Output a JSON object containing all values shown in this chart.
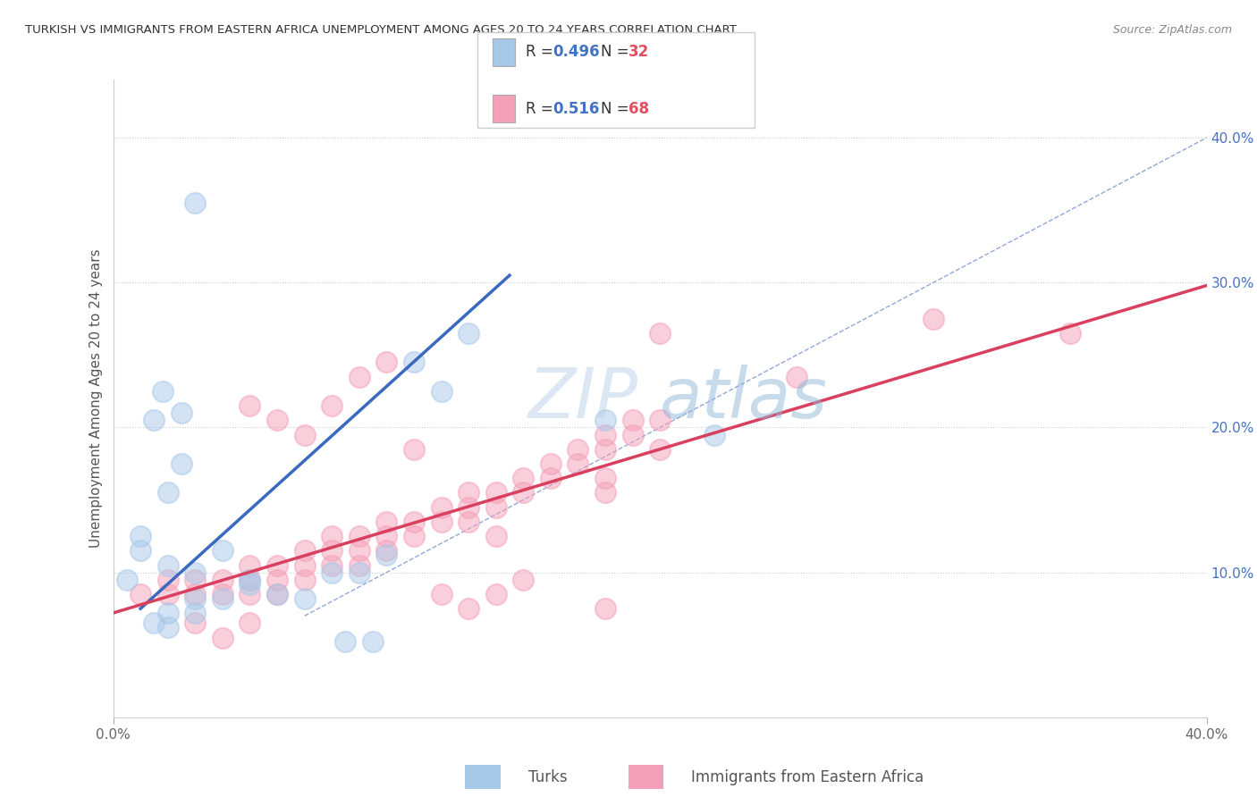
{
  "title": "TURKISH VS IMMIGRANTS FROM EASTERN AFRICA UNEMPLOYMENT AMONG AGES 20 TO 24 YEARS CORRELATION CHART",
  "source": "Source: ZipAtlas.com",
  "ylabel": "Unemployment Among Ages 20 to 24 years",
  "xlim": [
    0.0,
    0.4
  ],
  "ylim": [
    0.0,
    0.44
  ],
  "watermark_zip": "ZIP",
  "watermark_atlas": "atlas",
  "turks_color": "#a8c8e8",
  "east_africa_color": "#f4a0b8",
  "turks_line_color": "#3a6abf",
  "east_africa_line_color": "#d94060",
  "diag_line_color": "#90a8d8",
  "legend_r1": "R = ",
  "legend_v1": "0.496",
  "legend_n1": "  N = ",
  "legend_nv1": "32",
  "legend_r2": "R = ",
  "legend_v2": "0.516",
  "legend_n2": "  N = ",
  "legend_nv2": "68",
  "turks_scatter": [
    [
      0.015,
      0.205
    ],
    [
      0.018,
      0.225
    ],
    [
      0.025,
      0.21
    ],
    [
      0.01,
      0.125
    ],
    [
      0.02,
      0.155
    ],
    [
      0.025,
      0.175
    ],
    [
      0.01,
      0.115
    ],
    [
      0.02,
      0.105
    ],
    [
      0.03,
      0.1
    ],
    [
      0.04,
      0.115
    ],
    [
      0.05,
      0.095
    ],
    [
      0.06,
      0.085
    ],
    [
      0.04,
      0.082
    ],
    [
      0.03,
      0.082
    ],
    [
      0.02,
      0.072
    ],
    [
      0.02,
      0.062
    ],
    [
      0.03,
      0.072
    ],
    [
      0.05,
      0.092
    ],
    [
      0.07,
      0.082
    ],
    [
      0.08,
      0.1
    ],
    [
      0.09,
      0.1
    ],
    [
      0.1,
      0.112
    ],
    [
      0.11,
      0.245
    ],
    [
      0.12,
      0.225
    ],
    [
      0.13,
      0.265
    ],
    [
      0.18,
      0.205
    ],
    [
      0.085,
      0.052
    ],
    [
      0.095,
      0.052
    ],
    [
      0.03,
      0.355
    ],
    [
      0.22,
      0.195
    ],
    [
      0.015,
      0.065
    ],
    [
      0.005,
      0.095
    ]
  ],
  "east_africa_scatter": [
    [
      0.01,
      0.085
    ],
    [
      0.02,
      0.095
    ],
    [
      0.02,
      0.085
    ],
    [
      0.03,
      0.095
    ],
    [
      0.03,
      0.085
    ],
    [
      0.04,
      0.095
    ],
    [
      0.04,
      0.085
    ],
    [
      0.05,
      0.095
    ],
    [
      0.05,
      0.085
    ],
    [
      0.05,
      0.105
    ],
    [
      0.06,
      0.095
    ],
    [
      0.06,
      0.105
    ],
    [
      0.06,
      0.085
    ],
    [
      0.07,
      0.105
    ],
    [
      0.07,
      0.115
    ],
    [
      0.07,
      0.095
    ],
    [
      0.08,
      0.115
    ],
    [
      0.08,
      0.105
    ],
    [
      0.08,
      0.125
    ],
    [
      0.09,
      0.115
    ],
    [
      0.09,
      0.125
    ],
    [
      0.09,
      0.105
    ],
    [
      0.1,
      0.135
    ],
    [
      0.1,
      0.125
    ],
    [
      0.1,
      0.115
    ],
    [
      0.11,
      0.135
    ],
    [
      0.11,
      0.125
    ],
    [
      0.12,
      0.145
    ],
    [
      0.12,
      0.135
    ],
    [
      0.13,
      0.145
    ],
    [
      0.13,
      0.135
    ],
    [
      0.13,
      0.155
    ],
    [
      0.14,
      0.155
    ],
    [
      0.14,
      0.145
    ],
    [
      0.15,
      0.165
    ],
    [
      0.15,
      0.155
    ],
    [
      0.16,
      0.165
    ],
    [
      0.16,
      0.175
    ],
    [
      0.17,
      0.175
    ],
    [
      0.17,
      0.185
    ],
    [
      0.18,
      0.185
    ],
    [
      0.18,
      0.195
    ],
    [
      0.18,
      0.155
    ],
    [
      0.18,
      0.165
    ],
    [
      0.19,
      0.195
    ],
    [
      0.19,
      0.205
    ],
    [
      0.2,
      0.205
    ],
    [
      0.2,
      0.185
    ],
    [
      0.05,
      0.215
    ],
    [
      0.06,
      0.205
    ],
    [
      0.07,
      0.195
    ],
    [
      0.08,
      0.215
    ],
    [
      0.09,
      0.235
    ],
    [
      0.1,
      0.245
    ],
    [
      0.11,
      0.185
    ],
    [
      0.12,
      0.085
    ],
    [
      0.13,
      0.075
    ],
    [
      0.14,
      0.085
    ],
    [
      0.15,
      0.095
    ],
    [
      0.03,
      0.065
    ],
    [
      0.2,
      0.265
    ],
    [
      0.25,
      0.235
    ],
    [
      0.3,
      0.275
    ],
    [
      0.35,
      0.265
    ],
    [
      0.04,
      0.055
    ],
    [
      0.05,
      0.065
    ],
    [
      0.14,
      0.125
    ],
    [
      0.18,
      0.075
    ]
  ],
  "turks_line_x": [
    0.01,
    0.145
  ],
  "turks_line_y": [
    0.075,
    0.305
  ],
  "east_africa_line_x": [
    0.0,
    0.4
  ],
  "east_africa_line_y": [
    0.072,
    0.298
  ],
  "diag_line_x": [
    0.07,
    0.4
  ],
  "diag_line_y": [
    0.07,
    0.4
  ]
}
